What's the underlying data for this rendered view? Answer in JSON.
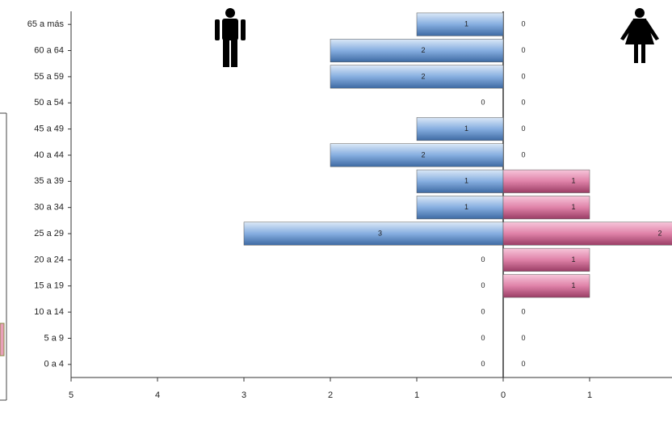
{
  "chart_data": {
    "type": "pyramid",
    "categories": [
      "0 a 4",
      "5 a 9",
      "10 a 14",
      "15 a 19",
      "20 a 24",
      "25 a 29",
      "30 a 34",
      "35 a 39",
      "40 a 44",
      "45 a 49",
      "50 a 54",
      "55 a 59",
      "60 a 64",
      "65 a más"
    ],
    "series": [
      {
        "name": "Hombres",
        "color": "#5b8cc8",
        "side": "left",
        "values": [
          0,
          0,
          0,
          0,
          0,
          3,
          1,
          1,
          2,
          1,
          0,
          2,
          2,
          1
        ]
      },
      {
        "name": "Mujeres",
        "color": "#d0608f",
        "side": "right",
        "values": [
          0,
          0,
          0,
          1,
          1,
          2,
          1,
          1,
          0,
          0,
          0,
          0,
          0,
          0
        ]
      }
    ],
    "xlim": [
      -5,
      2
    ],
    "xticks": [
      {
        "value": -5,
        "label": "5"
      },
      {
        "value": -4,
        "label": "4"
      },
      {
        "value": -3,
        "label": "3"
      },
      {
        "value": -2,
        "label": "2"
      },
      {
        "value": -1,
        "label": "1"
      },
      0,
      1
    ]
  }
}
